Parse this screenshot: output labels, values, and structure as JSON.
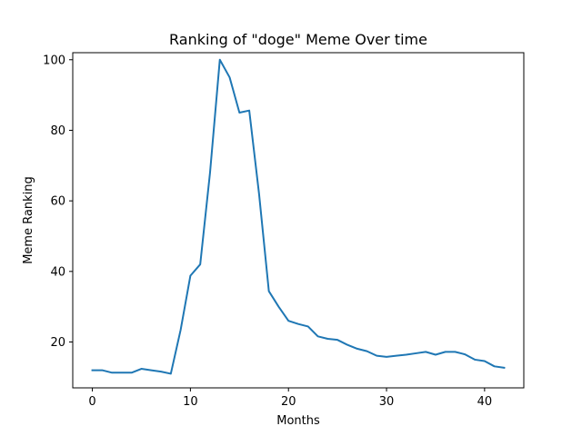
{
  "chart_data": {
    "type": "line",
    "title": "Ranking of \"doge\" Meme Over time",
    "xlabel": "Months",
    "ylabel": "Meme Ranking",
    "xlim": [
      -2,
      44
    ],
    "ylim": [
      7,
      102
    ],
    "xticks": [
      0,
      10,
      20,
      30,
      40
    ],
    "yticks": [
      20,
      40,
      60,
      80,
      100
    ],
    "grid": false,
    "series": [
      {
        "color": "#1f77b4",
        "x": [
          0,
          1,
          2,
          3,
          4,
          5,
          6,
          7,
          8,
          9,
          10,
          11,
          12,
          13,
          14,
          15,
          16,
          17,
          18,
          19,
          20,
          21,
          22,
          23,
          24,
          25,
          26,
          27,
          28,
          29,
          30,
          31,
          32,
          33,
          34,
          35,
          36,
          37,
          38,
          39,
          40,
          41,
          42
        ],
        "values": [
          12,
          12,
          11.3,
          11.3,
          11.3,
          12.4,
          12,
          11.6,
          11,
          23.4,
          38.8,
          42,
          68,
          100,
          95,
          85,
          85.6,
          62,
          34.4,
          30,
          26,
          25.1,
          24.4,
          21.6,
          20.9,
          20.6,
          19.2,
          18.1,
          17.4,
          16.1,
          15.8,
          16.1,
          16.4,
          16.8,
          17.2,
          16.4,
          17.2,
          17.2,
          16.5,
          15,
          14.6,
          13.1,
          12.7
        ]
      }
    ]
  }
}
